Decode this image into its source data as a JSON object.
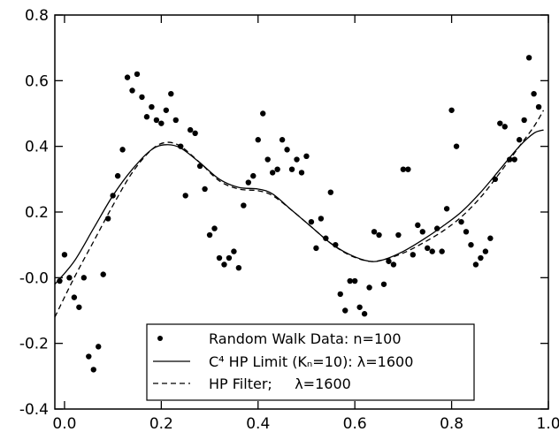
{
  "chart_data": {
    "type": "scatter",
    "title": "",
    "xlabel": "",
    "ylabel": "",
    "xlim": [
      -0.02,
      1.0
    ],
    "ylim": [
      -0.4,
      0.8
    ],
    "grid": false,
    "legend_position": "bottom-center",
    "x_ticks": [
      0.0,
      0.2,
      0.4,
      0.6,
      0.8,
      1.0
    ],
    "x_tick_labels": [
      "0.0",
      "0.2",
      "0.4",
      "0.6",
      "0.8",
      "1.0"
    ],
    "y_ticks": [
      -0.4,
      -0.2,
      0.0,
      0.2,
      0.4,
      0.6,
      0.8
    ],
    "y_tick_labels": [
      "-0.4",
      "-0.2",
      "-0.0",
      "0.2",
      "0.4",
      "0.6",
      "0.8"
    ],
    "series": [
      {
        "name": "Random Walk Data:  n=100",
        "kind": "markers",
        "points": [
          [
            -0.01,
            -0.01
          ],
          [
            0.0,
            0.07
          ],
          [
            0.01,
            0.0
          ],
          [
            0.02,
            -0.06
          ],
          [
            0.03,
            -0.09
          ],
          [
            0.04,
            0.0
          ],
          [
            0.05,
            -0.24
          ],
          [
            0.06,
            -0.28
          ],
          [
            0.07,
            -0.21
          ],
          [
            0.08,
            0.01
          ],
          [
            0.09,
            0.18
          ],
          [
            0.1,
            0.25
          ],
          [
            0.11,
            0.31
          ],
          [
            0.12,
            0.39
          ],
          [
            0.13,
            0.61
          ],
          [
            0.14,
            0.57
          ],
          [
            0.15,
            0.62
          ],
          [
            0.16,
            0.55
          ],
          [
            0.17,
            0.49
          ],
          [
            0.18,
            0.52
          ],
          [
            0.19,
            0.48
          ],
          [
            0.2,
            0.47
          ],
          [
            0.21,
            0.51
          ],
          [
            0.22,
            0.56
          ],
          [
            0.23,
            0.48
          ],
          [
            0.24,
            0.4
          ],
          [
            0.25,
            0.25
          ],
          [
            0.26,
            0.45
          ],
          [
            0.27,
            0.44
          ],
          [
            0.28,
            0.34
          ],
          [
            0.29,
            0.27
          ],
          [
            0.3,
            0.13
          ],
          [
            0.31,
            0.15
          ],
          [
            0.32,
            0.06
          ],
          [
            0.33,
            0.04
          ],
          [
            0.34,
            0.06
          ],
          [
            0.35,
            0.08
          ],
          [
            0.36,
            0.03
          ],
          [
            0.37,
            0.22
          ],
          [
            0.38,
            0.29
          ],
          [
            0.39,
            0.31
          ],
          [
            0.4,
            0.42
          ],
          [
            0.41,
            0.5
          ],
          [
            0.42,
            0.36
          ],
          [
            0.43,
            0.32
          ],
          [
            0.44,
            0.33
          ],
          [
            0.45,
            0.42
          ],
          [
            0.46,
            0.39
          ],
          [
            0.47,
            0.33
          ],
          [
            0.48,
            0.36
          ],
          [
            0.49,
            0.32
          ],
          [
            0.5,
            0.37
          ],
          [
            0.51,
            0.17
          ],
          [
            0.52,
            0.09
          ],
          [
            0.53,
            0.18
          ],
          [
            0.54,
            0.12
          ],
          [
            0.55,
            0.26
          ],
          [
            0.56,
            0.1
          ],
          [
            0.57,
            -0.05
          ],
          [
            0.58,
            -0.1
          ],
          [
            0.59,
            -0.01
          ],
          [
            0.6,
            -0.01
          ],
          [
            0.61,
            -0.09
          ],
          [
            0.62,
            -0.11
          ],
          [
            0.63,
            -0.03
          ],
          [
            0.64,
            0.14
          ],
          [
            0.65,
            0.13
          ],
          [
            0.66,
            -0.02
          ],
          [
            0.67,
            0.05
          ],
          [
            0.68,
            0.04
          ],
          [
            0.69,
            0.13
          ],
          [
            0.7,
            0.33
          ],
          [
            0.71,
            0.33
          ],
          [
            0.72,
            0.07
          ],
          [
            0.73,
            0.16
          ],
          [
            0.74,
            0.14
          ],
          [
            0.75,
            0.09
          ],
          [
            0.76,
            0.08
          ],
          [
            0.77,
            0.15
          ],
          [
            0.78,
            0.08
          ],
          [
            0.79,
            0.21
          ],
          [
            0.8,
            0.51
          ],
          [
            0.81,
            0.4
          ],
          [
            0.82,
            0.17
          ],
          [
            0.83,
            0.14
          ],
          [
            0.84,
            0.1
          ],
          [
            0.85,
            0.04
          ],
          [
            0.86,
            0.06
          ],
          [
            0.87,
            0.08
          ],
          [
            0.88,
            0.12
          ],
          [
            0.89,
            0.3
          ],
          [
            0.9,
            0.47
          ],
          [
            0.91,
            0.46
          ],
          [
            0.92,
            0.36
          ],
          [
            0.93,
            0.36
          ],
          [
            0.94,
            0.42
          ],
          [
            0.95,
            0.48
          ],
          [
            0.96,
            0.67
          ],
          [
            0.97,
            0.56
          ],
          [
            0.98,
            0.52
          ]
        ]
      },
      {
        "name": "C⁴ HP Limit (Kₙ=10): λ=1600",
        "kind": "solid",
        "points": [
          [
            -0.02,
            -0.02
          ],
          [
            0.02,
            0.05
          ],
          [
            0.06,
            0.15
          ],
          [
            0.1,
            0.25
          ],
          [
            0.14,
            0.33
          ],
          [
            0.18,
            0.39
          ],
          [
            0.21,
            0.405
          ],
          [
            0.24,
            0.395
          ],
          [
            0.28,
            0.35
          ],
          [
            0.32,
            0.3
          ],
          [
            0.36,
            0.275
          ],
          [
            0.4,
            0.27
          ],
          [
            0.43,
            0.255
          ],
          [
            0.47,
            0.205
          ],
          [
            0.51,
            0.155
          ],
          [
            0.55,
            0.105
          ],
          [
            0.59,
            0.07
          ],
          [
            0.63,
            0.05
          ],
          [
            0.66,
            0.055
          ],
          [
            0.7,
            0.08
          ],
          [
            0.74,
            0.115
          ],
          [
            0.78,
            0.155
          ],
          [
            0.82,
            0.2
          ],
          [
            0.86,
            0.26
          ],
          [
            0.9,
            0.33
          ],
          [
            0.94,
            0.4
          ],
          [
            0.97,
            0.44
          ],
          [
            0.99,
            0.45
          ]
        ]
      },
      {
        "name": "HP Filter;     λ=1600",
        "kind": "dashed",
        "points": [
          [
            -0.02,
            -0.12
          ],
          [
            0.02,
            0.0
          ],
          [
            0.06,
            0.11
          ],
          [
            0.1,
            0.22
          ],
          [
            0.14,
            0.32
          ],
          [
            0.18,
            0.39
          ],
          [
            0.21,
            0.412
          ],
          [
            0.24,
            0.4
          ],
          [
            0.28,
            0.35
          ],
          [
            0.32,
            0.295
          ],
          [
            0.36,
            0.27
          ],
          [
            0.4,
            0.265
          ],
          [
            0.43,
            0.25
          ],
          [
            0.47,
            0.205
          ],
          [
            0.51,
            0.155
          ],
          [
            0.55,
            0.105
          ],
          [
            0.59,
            0.068
          ],
          [
            0.63,
            0.05
          ],
          [
            0.66,
            0.055
          ],
          [
            0.7,
            0.075
          ],
          [
            0.74,
            0.105
          ],
          [
            0.78,
            0.14
          ],
          [
            0.82,
            0.185
          ],
          [
            0.86,
            0.245
          ],
          [
            0.9,
            0.32
          ],
          [
            0.94,
            0.4
          ],
          [
            0.97,
            0.46
          ],
          [
            0.99,
            0.51
          ]
        ]
      }
    ]
  }
}
